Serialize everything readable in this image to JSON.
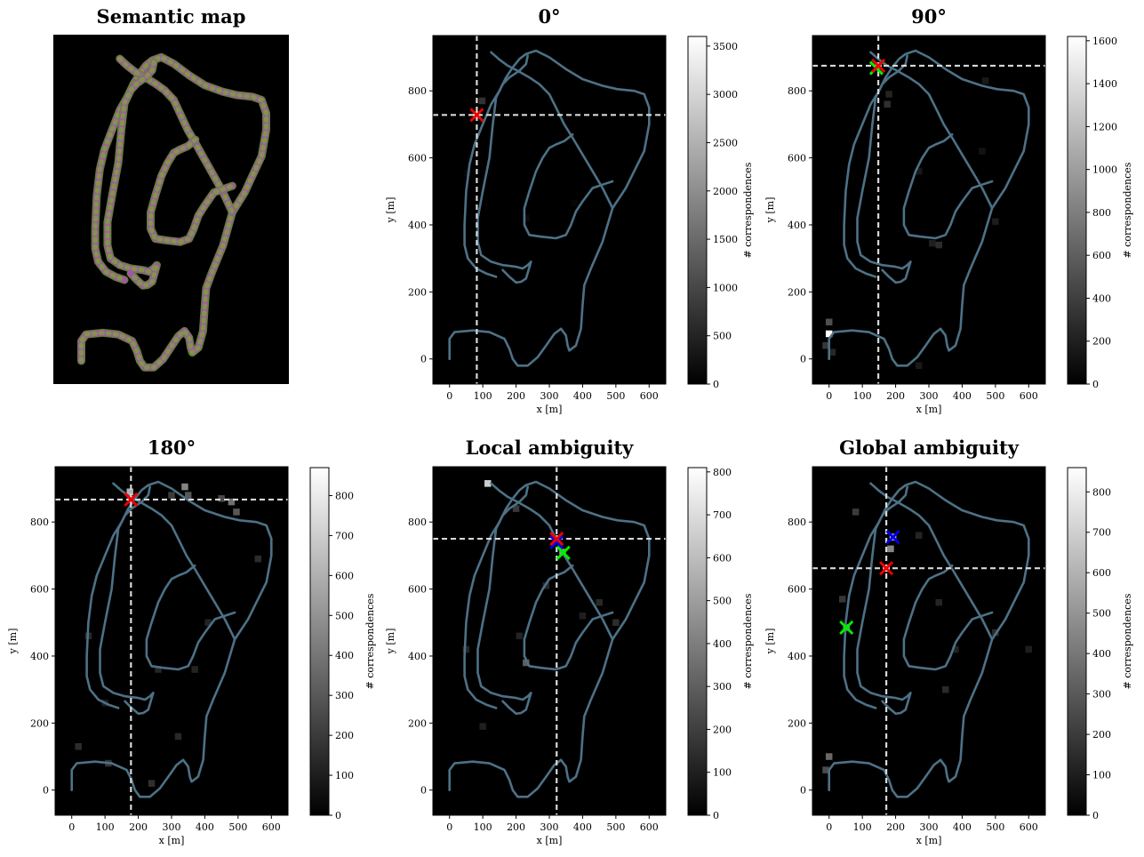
{
  "chart_data": [
    {
      "type": "image",
      "title": "Semantic map"
    },
    {
      "type": "heatmap",
      "title": "0°",
      "xlabel": "x [m]",
      "ylabel": "y [m]",
      "xlim": [
        -50,
        650
      ],
      "ylim": [
        -75,
        965
      ],
      "xticks": [
        0,
        100,
        200,
        300,
        400,
        500,
        600
      ],
      "yticks": [
        0,
        200,
        400,
        600,
        800
      ],
      "colorbar": {
        "label": "# correspondences",
        "min": 0,
        "max": 3600,
        "ticks": [
          0,
          500,
          1000,
          1500,
          2000,
          2500,
          3000,
          3500
        ]
      },
      "crosshair": {
        "x": 82,
        "y": 728
      },
      "markers": [
        {
          "x": 82,
          "y": 728,
          "color": "#ee0000"
        }
      ],
      "hot_cells": [
        {
          "x": 82,
          "y": 728,
          "v": 3600
        },
        {
          "x": 98,
          "y": 770,
          "v": 700
        },
        {
          "x": 55,
          "y": 555,
          "v": 120
        },
        {
          "x": 230,
          "y": 420,
          "v": 150
        },
        {
          "x": 375,
          "y": 465,
          "v": 90
        }
      ]
    },
    {
      "type": "heatmap",
      "title": "90°",
      "xlabel": "x [m]",
      "ylabel": "y [m]",
      "xlim": [
        -50,
        650
      ],
      "ylim": [
        -75,
        965
      ],
      "xticks": [
        0,
        100,
        200,
        300,
        400,
        500,
        600
      ],
      "yticks": [
        0,
        200,
        400,
        600,
        800
      ],
      "colorbar": {
        "label": "# correspondences",
        "min": 0,
        "max": 1620,
        "ticks": [
          0,
          200,
          400,
          600,
          800,
          1000,
          1200,
          1400,
          1600
        ]
      },
      "crosshair": {
        "x": 148,
        "y": 875
      },
      "markers": [
        {
          "x": 142,
          "y": 868,
          "color": "#00ee00"
        },
        {
          "x": 148,
          "y": 875,
          "color": "#ee0000"
        }
      ],
      "hot_cells": [
        {
          "x": 0,
          "y": 75,
          "v": 1620
        },
        {
          "x": 148,
          "y": 875,
          "v": 1300
        },
        {
          "x": 0,
          "y": 110,
          "v": 500
        },
        {
          "x": -10,
          "y": 40,
          "v": 350
        },
        {
          "x": 10,
          "y": 20,
          "v": 250
        },
        {
          "x": 175,
          "y": 760,
          "v": 300
        },
        {
          "x": 330,
          "y": 340,
          "v": 280
        },
        {
          "x": 310,
          "y": 345,
          "v": 200
        },
        {
          "x": 500,
          "y": 410,
          "v": 180
        },
        {
          "x": 470,
          "y": 830,
          "v": 160
        },
        {
          "x": 270,
          "y": 560,
          "v": 150
        },
        {
          "x": 460,
          "y": 620,
          "v": 120
        },
        {
          "x": 270,
          "y": -20,
          "v": 160
        },
        {
          "x": 180,
          "y": 790,
          "v": 220
        }
      ]
    },
    {
      "type": "heatmap",
      "title": "180°",
      "xlabel": "x [m]",
      "ylabel": "y [m]",
      "xlim": [
        -50,
        650
      ],
      "ylim": [
        -75,
        965
      ],
      "xticks": [
        0,
        100,
        200,
        300,
        400,
        500,
        600
      ],
      "yticks": [
        0,
        200,
        400,
        600,
        800
      ],
      "colorbar": {
        "label": "# correspondences",
        "min": 0,
        "max": 870,
        "ticks": [
          0,
          100,
          200,
          300,
          400,
          500,
          600,
          700,
          800
        ]
      },
      "crosshair": {
        "x": 178,
        "y": 867
      },
      "markers": [
        {
          "x": 178,
          "y": 867,
          "color": "#ee0000"
        }
      ],
      "hot_cells": [
        {
          "x": 178,
          "y": 867,
          "v": 870
        },
        {
          "x": 175,
          "y": 890,
          "v": 600
        },
        {
          "x": 340,
          "y": 905,
          "v": 450
        },
        {
          "x": 350,
          "y": 880,
          "v": 300
        },
        {
          "x": 480,
          "y": 860,
          "v": 380
        },
        {
          "x": 495,
          "y": 830,
          "v": 300
        },
        {
          "x": 450,
          "y": 870,
          "v": 250
        },
        {
          "x": 300,
          "y": 880,
          "v": 200
        },
        {
          "x": 110,
          "y": 80,
          "v": 180
        },
        {
          "x": 20,
          "y": 130,
          "v": 150
        },
        {
          "x": 240,
          "y": 20,
          "v": 160
        },
        {
          "x": 50,
          "y": 460,
          "v": 140
        },
        {
          "x": 320,
          "y": 160,
          "v": 140
        },
        {
          "x": 560,
          "y": 690,
          "v": 150
        },
        {
          "x": 410,
          "y": 500,
          "v": 120
        },
        {
          "x": 260,
          "y": 360,
          "v": 130
        },
        {
          "x": 370,
          "y": 360,
          "v": 120
        },
        {
          "x": 100,
          "y": 260,
          "v": 100
        }
      ]
    },
    {
      "type": "heatmap",
      "title": "Local ambiguity",
      "xlabel": "x [m]",
      "ylabel": "y [m]",
      "xlim": [
        -50,
        650
      ],
      "ylim": [
        -75,
        965
      ],
      "xticks": [
        0,
        100,
        200,
        300,
        400,
        500,
        600
      ],
      "yticks": [
        0,
        200,
        400,
        600,
        800
      ],
      "colorbar": {
        "label": "# correspondences",
        "min": 0,
        "max": 810,
        "ticks": [
          0,
          100,
          200,
          300,
          400,
          500,
          600,
          700,
          800
        ]
      },
      "crosshair": {
        "x": 322,
        "y": 750
      },
      "markers": [
        {
          "x": 322,
          "y": 740,
          "color": "#0000ee"
        },
        {
          "x": 342,
          "y": 708,
          "color": "#00ee00"
        },
        {
          "x": 322,
          "y": 750,
          "color": "#ee0000"
        }
      ],
      "hot_cells": [
        {
          "x": 115,
          "y": 915,
          "v": 650
        },
        {
          "x": 322,
          "y": 750,
          "v": 810
        },
        {
          "x": 340,
          "y": 710,
          "v": 500
        },
        {
          "x": 230,
          "y": 380,
          "v": 300
        },
        {
          "x": 200,
          "y": 840,
          "v": 180
        },
        {
          "x": 50,
          "y": 420,
          "v": 120
        },
        {
          "x": 450,
          "y": 560,
          "v": 130
        },
        {
          "x": 400,
          "y": 520,
          "v": 100
        },
        {
          "x": 500,
          "y": 500,
          "v": 140
        },
        {
          "x": 210,
          "y": 460,
          "v": 110
        },
        {
          "x": 290,
          "y": 610,
          "v": 120
        },
        {
          "x": 100,
          "y": 190,
          "v": 100
        }
      ]
    },
    {
      "type": "heatmap",
      "title": "Global ambiguity",
      "xlabel": "x [m]",
      "ylabel": "y [m]",
      "xlim": [
        -50,
        650
      ],
      "ylim": [
        -75,
        965
      ],
      "xticks": [
        0,
        100,
        200,
        300,
        400,
        500,
        600
      ],
      "yticks": [
        0,
        200,
        400,
        600,
        800
      ],
      "colorbar": {
        "label": "# correspondences",
        "min": 0,
        "max": 860,
        "ticks": [
          0,
          100,
          200,
          300,
          400,
          500,
          600,
          700,
          800
        ]
      },
      "crosshair": {
        "x": 172,
        "y": 662
      },
      "markers": [
        {
          "x": 52,
          "y": 485,
          "color": "#00ee00"
        },
        {
          "x": 192,
          "y": 755,
          "color": "#0000ee"
        },
        {
          "x": 172,
          "y": 662,
          "color": "#ee0000"
        }
      ],
      "hot_cells": [
        {
          "x": 172,
          "y": 662,
          "v": 860
        },
        {
          "x": 192,
          "y": 755,
          "v": 700
        },
        {
          "x": 185,
          "y": 720,
          "v": 450
        },
        {
          "x": 52,
          "y": 485,
          "v": 500
        },
        {
          "x": 0,
          "y": 100,
          "v": 350
        },
        {
          "x": -10,
          "y": 60,
          "v": 250
        },
        {
          "x": 80,
          "y": 830,
          "v": 200
        },
        {
          "x": 40,
          "y": 570,
          "v": 180
        },
        {
          "x": 500,
          "y": 470,
          "v": 150
        },
        {
          "x": 350,
          "y": 300,
          "v": 140
        },
        {
          "x": 270,
          "y": 760,
          "v": 120
        },
        {
          "x": 600,
          "y": 420,
          "v": 100
        },
        {
          "x": 330,
          "y": 560,
          "v": 120
        },
        {
          "x": 380,
          "y": 420,
          "v": 110
        }
      ]
    }
  ]
}
